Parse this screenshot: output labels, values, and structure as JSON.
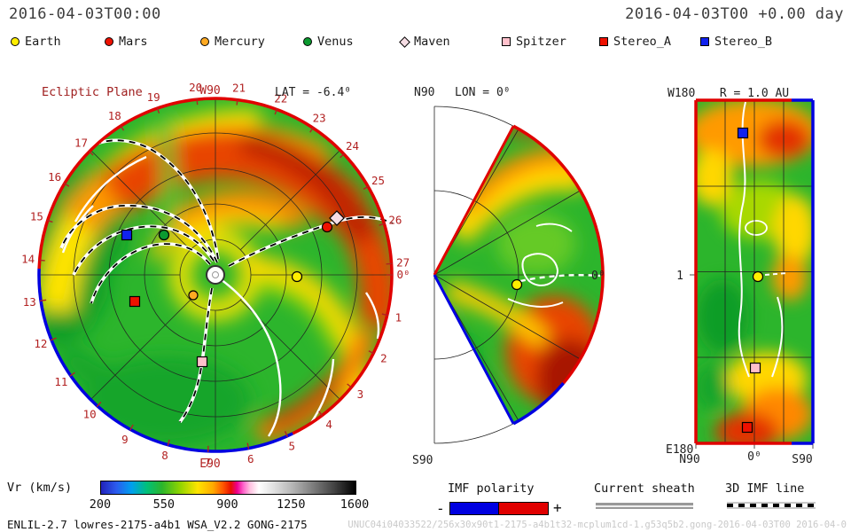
{
  "header": {
    "left_timestamp": "2016-04-03T00:00",
    "right_timestamp": "2016-04-03T00 +0.00 day"
  },
  "legend": {
    "items": [
      {
        "label": "Earth",
        "marker": "circle",
        "color": "#ffee00"
      },
      {
        "label": "Mars",
        "marker": "circle",
        "color": "#ee1100"
      },
      {
        "label": "Mercury",
        "marker": "circle",
        "color": "#ffaa22"
      },
      {
        "label": "Venus",
        "marker": "circle",
        "color": "#0c9a30"
      },
      {
        "label": "Maven",
        "marker": "diamond",
        "color": "#f6dde4"
      },
      {
        "label": "Spitzer",
        "marker": "square",
        "color": "#ffc0cb"
      },
      {
        "label": "Stereo_A",
        "marker": "square",
        "color": "#ee1100"
      },
      {
        "label": "Stereo_B",
        "marker": "square",
        "color": "#1122ee"
      }
    ]
  },
  "panels": {
    "ecliptic": {
      "title": "Ecliptic Plane",
      "lat_label": "LAT = -6.4⁰",
      "w_label": "W90",
      "e_label": "E90",
      "tick_labels": [
        "0⁰",
        "1",
        "2",
        "3",
        "4",
        "5",
        "6",
        "7",
        "8",
        "9",
        "10",
        "11",
        "12",
        "13",
        "14",
        "15",
        "16",
        "17",
        "18",
        "19",
        "20",
        "21",
        "22",
        "23",
        "24",
        "25",
        "26",
        "27"
      ]
    },
    "meridional": {
      "n_label": "N90",
      "lon_label": "LON = 0⁰",
      "s_label": "S90",
      "right_label": "0⁰"
    },
    "radial": {
      "w_label": "W180",
      "title": "R = 1.0 AU",
      "e_label": "E180",
      "x_ticks": [
        "N90",
        "0⁰",
        "S90"
      ],
      "r_tick": "1"
    }
  },
  "colorbar": {
    "label": "Vr (km/s)",
    "ticks": [
      "200",
      "550",
      "900",
      "1250",
      "1600"
    ]
  },
  "legend2": {
    "imf_label": "IMF polarity",
    "imf_minus": "-",
    "imf_plus": "+",
    "sheath_label": "Current sheath",
    "imf_line_label": "3D IMF line"
  },
  "footer": {
    "model_info": "ENLIL-2.7 lowres-2175-a4b1 WSA_V2.2 GONG-2175",
    "watermark": "UNUC04i04033522/256x30x90t1-2175-a4b1t32-mcplum1cd-1.g53q5b2.gong-2016-04-03T00  2016-04-0"
  },
  "accent_colors": {
    "positive_polarity": "#e00000",
    "negative_polarity": "#0000e0",
    "tick_label_red": "#b22222"
  },
  "chart_data": [
    {
      "type": "heatmap",
      "id": "ecliptic-plane",
      "title": "Ecliptic Plane",
      "slice": "ecliptic plane cut of WSA-ENLIL solar wind model",
      "lat_deg": -6.4,
      "quantity": "radial solar wind speed Vr",
      "units": "km/s",
      "color_range": [
        200,
        1600
      ],
      "radial_extent_au": [
        0,
        1.7
      ],
      "angular_ticks_days": [
        0,
        1,
        2,
        3,
        4,
        5,
        6,
        7,
        8,
        9,
        10,
        11,
        12,
        13,
        14,
        15,
        16,
        17,
        18,
        19,
        20,
        21,
        22,
        23,
        24,
        25,
        26,
        27
      ],
      "direction_labels": {
        "top": "W90",
        "bottom": "E90",
        "right": "0"
      },
      "markers": [
        {
          "name": "Earth",
          "r_au": 1.0,
          "lon_deg": 0
        },
        {
          "name": "Mercury",
          "r_au": 0.36,
          "lon_deg": -137
        },
        {
          "name": "Venus",
          "r_au": 0.77,
          "lon_deg": 142
        },
        {
          "name": "Mars",
          "r_au": 1.55,
          "lon_deg": 24
        },
        {
          "name": "Maven",
          "r_au": 1.55,
          "lon_deg": 26
        },
        {
          "name": "Stereo_A",
          "r_au": 1.0,
          "lon_deg": -162
        },
        {
          "name": "Stereo_B",
          "r_au": 1.15,
          "lon_deg": 156
        },
        {
          "name": "Spitzer",
          "r_au": 1.03,
          "lon_deg": -99
        }
      ],
      "features": "fast stream band ~600-800 km/s (orange/red) spiraling across upper half; ambient slow wind ~300-400 km/s (green); yellow ~500 km/s bands near Sun and toward Earth; white current-sheet lines; black-white dashed 3D IMF spiral lines"
    },
    {
      "type": "heatmap",
      "id": "meridional-plane",
      "title": "LON = 0",
      "slice": "meridional plane at longitude 0 (wedge +/-60 deg latitude)",
      "labels": {
        "top": "N90",
        "bottom": "S90",
        "right": "0"
      },
      "quantity": "Vr",
      "units": "km/s",
      "color_range": [
        200,
        1600
      ],
      "markers": [
        {
          "name": "Earth",
          "r_au": 1.0,
          "lat_deg": -6.4
        }
      ],
      "features": "slow green wind near equator/apex, yellow-orange mid band north, dark red fast stream at southern outer edge"
    },
    {
      "type": "heatmap",
      "id": "radial-shell",
      "title": "R = 1.0 AU",
      "slice": "latitude-longitude map of sphere at 1 AU",
      "x_axis_labels": [
        "N90",
        "0",
        "S90"
      ],
      "y_axis_labels": [
        "W180",
        "E180"
      ],
      "r_tick": "1",
      "quantity": "Vr",
      "units": "km/s",
      "color_range": [
        200,
        1600
      ],
      "markers": [
        {
          "name": "Stereo_B"
        },
        {
          "name": "Earth"
        },
        {
          "name": "Spitzer"
        },
        {
          "name": "Stereo_A"
        }
      ],
      "features": "orange/red fast streams near top and bottom, green slow wind mid-map, white IMF contour lines"
    },
    {
      "type": "colorbar",
      "label": "Vr (km/s)",
      "tick_values": [
        200,
        550,
        900,
        1250,
        1600
      ],
      "range": [
        200,
        1600
      ],
      "stops": [
        "blue",
        "cyan",
        "green",
        "yellow",
        "orange",
        "red",
        "magenta",
        "white",
        "gray",
        "black"
      ]
    }
  ]
}
